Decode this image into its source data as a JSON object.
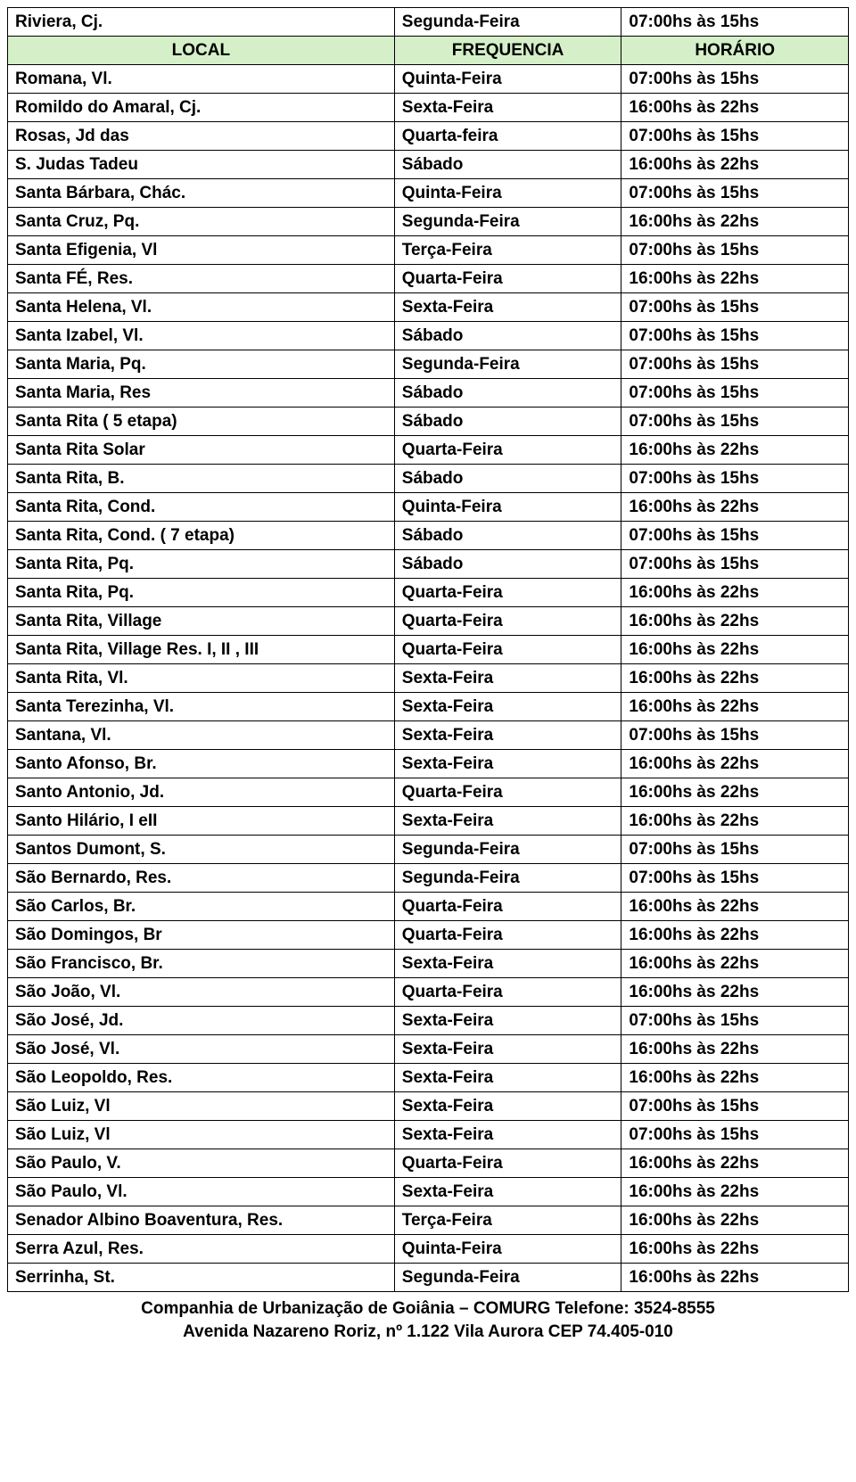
{
  "table": {
    "header": {
      "local": "LOCAL",
      "frequencia": "FREQUENCIA",
      "horario": "HORÁRIO"
    },
    "header_bg": "#d5f0c8",
    "border_color": "#000000",
    "rows": [
      {
        "local": "Riviera, Cj.",
        "freq": "Segunda-Feira",
        "time": "07:00hs às 15hs",
        "is_header": false
      },
      {
        "is_header": true
      },
      {
        "local": "Romana, Vl.",
        "freq": "Quinta-Feira",
        "time": "07:00hs às 15hs"
      },
      {
        "local": "Romildo do Amaral, Cj.",
        "freq": "Sexta-Feira",
        "time": "16:00hs às 22hs"
      },
      {
        "local": "Rosas, Jd das",
        "freq": "Quarta-feira",
        "time": "07:00hs às 15hs"
      },
      {
        "local": "S. Judas Tadeu",
        "freq": "Sábado",
        "time": "16:00hs às 22hs"
      },
      {
        "local": "Santa Bárbara, Chác.",
        "freq": "Quinta-Feira",
        "time": "07:00hs às 15hs"
      },
      {
        "local": "Santa Cruz, Pq.",
        "freq": "Segunda-Feira",
        "time": "16:00hs às 22hs"
      },
      {
        "local": "Santa Efigenia, Vl",
        "freq": "Terça-Feira",
        "time": "07:00hs às 15hs"
      },
      {
        "local": "Santa FÉ, Res.",
        "freq": "Quarta-Feira",
        "time": "16:00hs às 22hs"
      },
      {
        "local": "Santa Helena, Vl.",
        "freq": "Sexta-Feira",
        "time": "07:00hs às 15hs"
      },
      {
        "local": "Santa Izabel, Vl.",
        "freq": "Sábado",
        "time": "07:00hs às 15hs"
      },
      {
        "local": "Santa Maria, Pq.",
        "freq": "Segunda-Feira",
        "time": "07:00hs às 15hs"
      },
      {
        "local": "Santa Maria, Res",
        "freq": "Sábado",
        "time": "07:00hs às 15hs"
      },
      {
        "local": "Santa Rita ( 5 etapa)",
        "freq": "Sábado",
        "time": "07:00hs às 15hs"
      },
      {
        "local": "Santa Rita Solar",
        "freq": "Quarta-Feira",
        "time": "16:00hs às 22hs"
      },
      {
        "local": "Santa Rita, B.",
        "freq": "Sábado",
        "time": "07:00hs às 15hs"
      },
      {
        "local": "Santa Rita, Cond.",
        "freq": "Quinta-Feira",
        "time": "16:00hs às 22hs"
      },
      {
        "local": "Santa Rita, Cond. ( 7 etapa)",
        "freq": "Sábado",
        "time": "07:00hs às 15hs"
      },
      {
        "local": "Santa Rita, Pq.",
        "freq": "Sábado",
        "time": "07:00hs às 15hs"
      },
      {
        "local": "Santa Rita, Pq.",
        "freq": "Quarta-Feira",
        "time": "16:00hs às 22hs"
      },
      {
        "local": "Santa Rita, Village",
        "freq": "Quarta-Feira",
        "time": "16:00hs às 22hs"
      },
      {
        "local": "Santa Rita, Village Res. I, II , III",
        "freq": "Quarta-Feira",
        "time": "16:00hs às 22hs"
      },
      {
        "local": "Santa Rita, Vl.",
        "freq": "Sexta-Feira",
        "time": "16:00hs às 22hs"
      },
      {
        "local": "Santa Terezinha, Vl.",
        "freq": "Sexta-Feira",
        "time": "16:00hs às 22hs"
      },
      {
        "local": "Santana, Vl.",
        "freq": "Sexta-Feira",
        "time": "07:00hs às 15hs"
      },
      {
        "local": "Santo Afonso, Br.",
        "freq": "Sexta-Feira",
        "time": "16:00hs às 22hs"
      },
      {
        "local": "Santo Antonio, Jd.",
        "freq": "Quarta-Feira",
        "time": "16:00hs às 22hs"
      },
      {
        "local": "Santo Hilário, I eII",
        "freq": "Sexta-Feira",
        "time": "16:00hs às 22hs"
      },
      {
        "local": "Santos Dumont, S.",
        "freq": "Segunda-Feira",
        "time": "07:00hs às 15hs"
      },
      {
        "local": "São Bernardo, Res.",
        "freq": "Segunda-Feira",
        "time": "07:00hs às 15hs"
      },
      {
        "local": "São Carlos, Br.",
        "freq": "Quarta-Feira",
        "time": "16:00hs às 22hs"
      },
      {
        "local": "São Domingos, Br",
        "freq": "Quarta-Feira",
        "time": "16:00hs às 22hs"
      },
      {
        "local": "São Francisco, Br.",
        "freq": "Sexta-Feira",
        "time": "16:00hs às 22hs"
      },
      {
        "local": "São João, Vl.",
        "freq": "Quarta-Feira",
        "time": "16:00hs às 22hs"
      },
      {
        "local": "São José, Jd.",
        "freq": "Sexta-Feira",
        "time": "07:00hs às 15hs"
      },
      {
        "local": "São José, Vl.",
        "freq": "Sexta-Feira",
        "time": "16:00hs às 22hs"
      },
      {
        "local": "São Leopoldo, Res.",
        "freq": "Sexta-Feira",
        "time": "16:00hs às 22hs"
      },
      {
        "local": "São Luiz, Vl",
        "freq": "Sexta-Feira",
        "time": "07:00hs às 15hs"
      },
      {
        "local": "São Luiz, Vl",
        "freq": "Sexta-Feira",
        "time": "07:00hs às 15hs"
      },
      {
        "local": "São Paulo, V.",
        "freq": "Quarta-Feira",
        "time": "16:00hs às 22hs"
      },
      {
        "local": "São Paulo, Vl.",
        "freq": "Sexta-Feira",
        "time": "16:00hs às 22hs"
      },
      {
        "local": "Senador Albino Boaventura, Res.",
        "freq": "Terça-Feira",
        "time": "16:00hs às 22hs"
      },
      {
        "local": "Serra Azul, Res.",
        "freq": "Quinta-Feira",
        "time": "16:00hs às 22hs"
      },
      {
        "local": "Serrinha, St.",
        "freq": "Segunda-Feira",
        "time": "16:00hs às 22hs"
      }
    ]
  },
  "footer": {
    "line1": "Companhia de Urbanização de Goiânia – COMURG Telefone: 3524-8555",
    "line2": "Avenida Nazareno Roriz, nº 1.122 Vila Aurora CEP 74.405-010"
  }
}
